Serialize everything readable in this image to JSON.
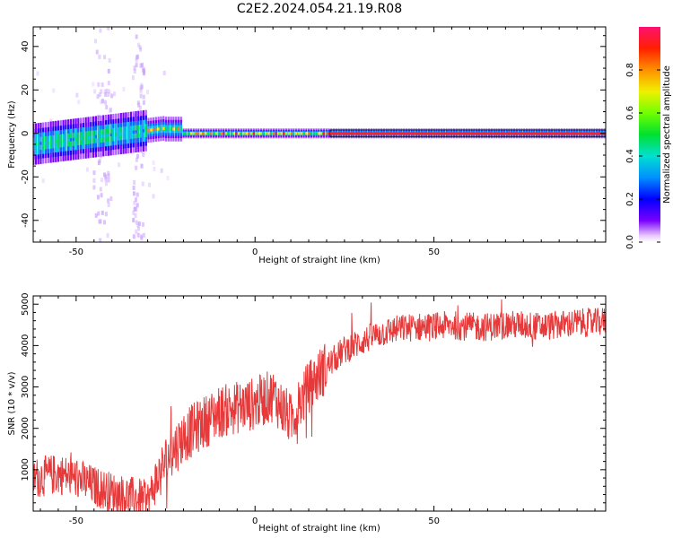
{
  "page_title": "C2E2.2024.054.21.19.R08",
  "chart_data": [
    {
      "type": "heatmap",
      "title": "",
      "xlabel": "Height of straight line (km)",
      "ylabel": "Frequency (Hz)",
      "xlim": [
        -62,
        98
      ],
      "ylim": [
        -50,
        49
      ],
      "xticks": [
        -50,
        0,
        50
      ],
      "yticks": [
        -40,
        -20,
        0,
        20,
        40
      ],
      "colorbar": {
        "label": "Normalized spectral amplitude",
        "ticks": [
          "0.0",
          "0.2",
          "0.4",
          "0.6",
          "0.8"
        ],
        "range": [
          0,
          1
        ]
      }
    },
    {
      "type": "line",
      "title": "",
      "xlabel": "Height of straight line (km)",
      "ylabel": "SNR (10 * v/v)",
      "xlim": [
        -62,
        98
      ],
      "ylim": [
        0,
        5200
      ],
      "xticks": [
        -50,
        0,
        50
      ],
      "yticks": [
        1000,
        2000,
        3000,
        4000,
        5000
      ],
      "series_color": "#e8393a",
      "trend": {
        "x": [
          -62,
          -55,
          -50,
          -45,
          -40,
          -35,
          -30,
          -25,
          -20,
          -15,
          -10,
          -5,
          0,
          5,
          10,
          15,
          20,
          25,
          30,
          35,
          40,
          45,
          50,
          55,
          60,
          65,
          70,
          75,
          80,
          85,
          90,
          95,
          98
        ],
        "y": [
          800,
          900,
          800,
          600,
          450,
          350,
          250,
          1200,
          1800,
          2100,
          2400,
          2500,
          2600,
          2800,
          2200,
          3000,
          3500,
          3900,
          4100,
          4300,
          4400,
          4450,
          4450,
          4500,
          4450,
          4450,
          4500,
          4500,
          4450,
          4500,
          4550,
          4550,
          4600
        ]
      }
    }
  ]
}
